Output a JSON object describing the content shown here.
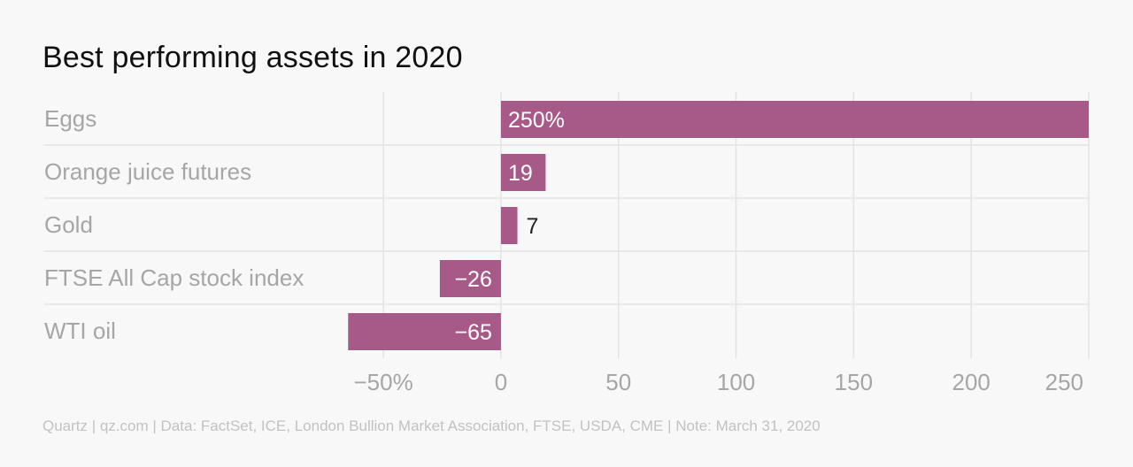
{
  "title": "Best performing assets in 2020",
  "footer": "Quartz | qz.com | Data: FactSet, ICE, London Bullion Market Association, FTSE, USDA, CME | Note: March 31, 2020",
  "colors": {
    "bar": "#a75a88",
    "grid": "#e4e4e4",
    "label_inside": "#ffffff",
    "label_outside": "#222222"
  },
  "chart_data": {
    "type": "bar",
    "orientation": "horizontal",
    "categories": [
      "Eggs",
      "Orange juice futures",
      "Gold",
      "FTSE All Cap stock index",
      "WTI oil"
    ],
    "values": [
      250,
      19,
      7,
      -26,
      -65
    ],
    "data_labels": [
      "250%",
      "19",
      "7",
      "−26",
      "−65"
    ],
    "xlim": [
      -70,
      250
    ],
    "xticks": [
      -50,
      0,
      50,
      100,
      150,
      200,
      250
    ],
    "xtick_labels": [
      "−50%",
      "0",
      "50",
      "100",
      "150",
      "200",
      "250"
    ],
    "grid": true
  }
}
